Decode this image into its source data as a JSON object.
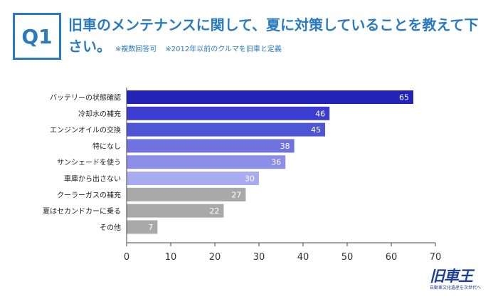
{
  "header": {
    "badge": "Q1",
    "title": "旧車のメンテナンスに関して、夏に対策していることを教えて下さい。",
    "note1": "※複数回答可",
    "note2": "※2012年以前のクルマを旧車と定義"
  },
  "colors": {
    "accent": "#2a7ac0",
    "bars": [
      "#2323b7",
      "#3a3dd0",
      "#4f56d6",
      "#6f73e0",
      "#8c8fe8",
      "#a8abef",
      "#a9a9a9",
      "#a9a9a9",
      "#a9a9a9"
    ]
  },
  "chart_data": {
    "type": "bar",
    "orientation": "horizontal",
    "categories": [
      "バッテリーの状態確認",
      "冷却水の補充",
      "エンジンオイルの交換",
      "特になし",
      "サンシェードを使う",
      "車庫から出さない",
      "クーラーガスの補充",
      "夏はセカンドカーに乗る",
      "その他"
    ],
    "values": [
      65,
      46,
      45,
      38,
      36,
      30,
      27,
      22,
      7
    ],
    "xlim": [
      0,
      70
    ],
    "xticks": [
      0,
      10,
      20,
      30,
      40,
      50,
      60,
      70
    ],
    "grid": false
  },
  "logo": {
    "main": "旧車王",
    "sub": "自動車文化遺産を次世代へ"
  }
}
